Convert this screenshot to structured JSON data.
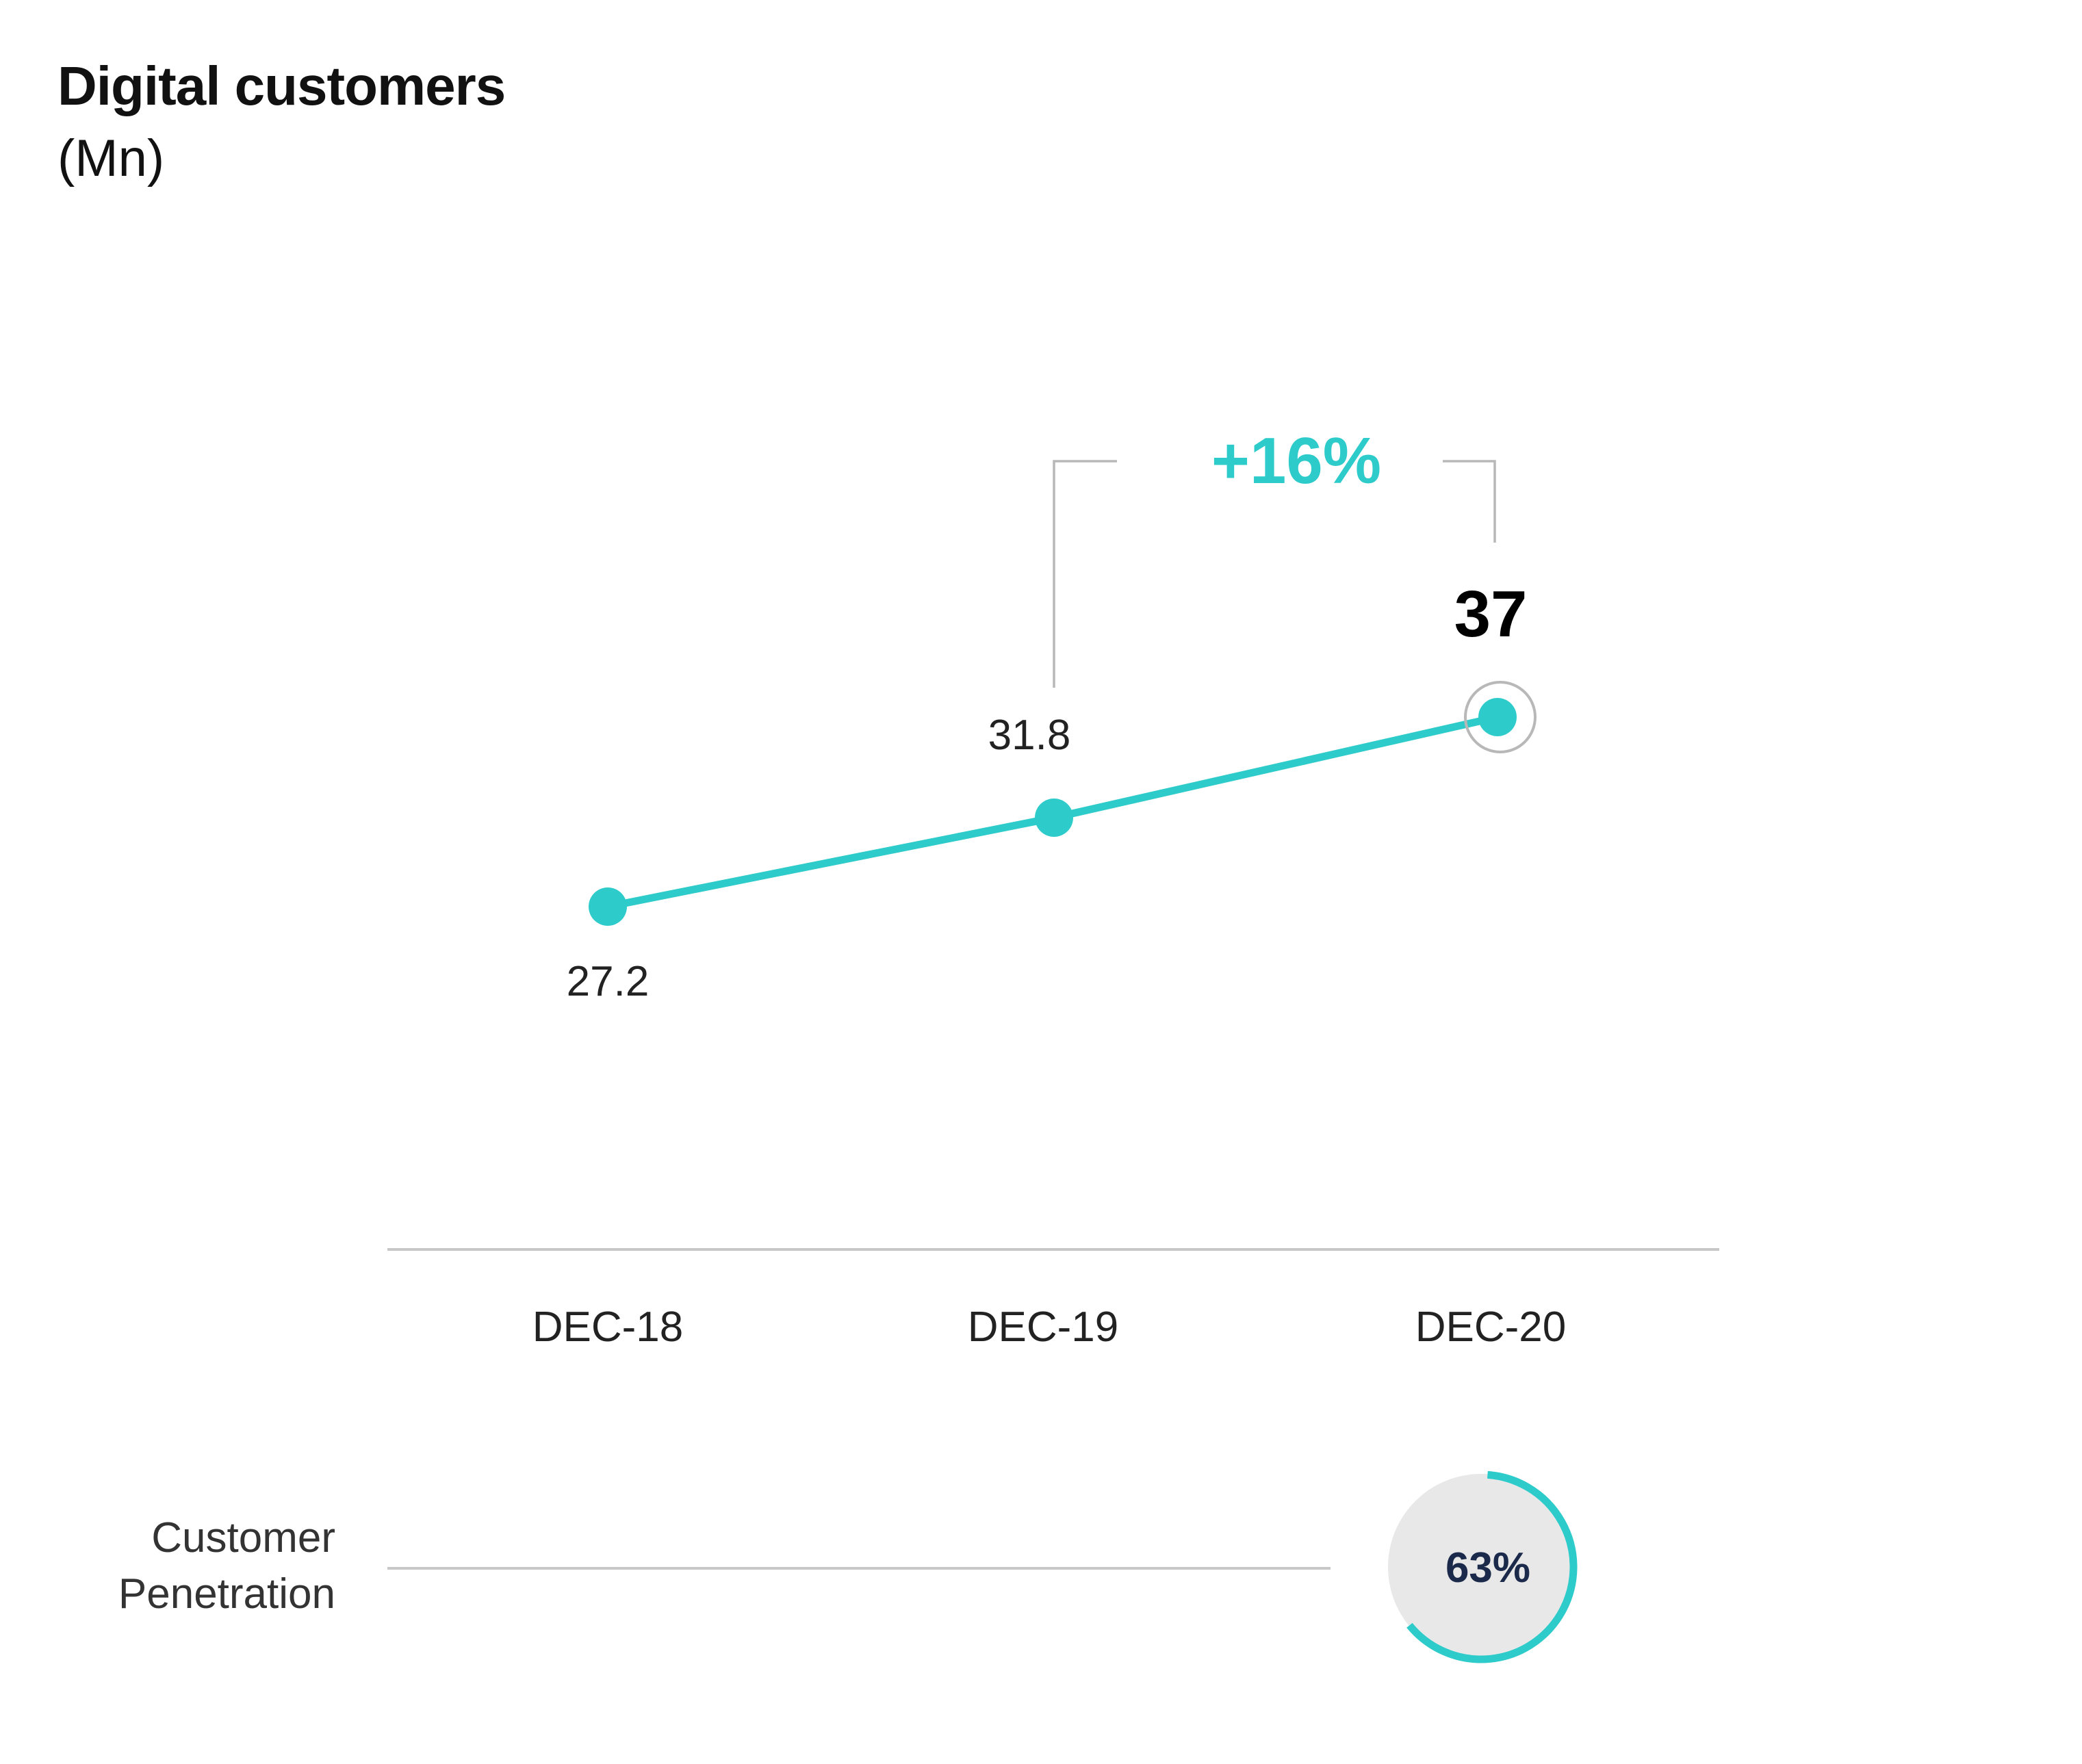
{
  "title": "Digital customers",
  "subtitle": "(Mn)",
  "colors": {
    "accent": "#2ECBCB",
    "axis": "#C8C8C8",
    "bracket": "#B8B8B8",
    "circle_fill": "#E8E8E8",
    "navy": "#1B2A4A"
  },
  "chart_data": {
    "type": "line",
    "categories": [
      "DEC-18",
      "DEC-19",
      "DEC-20"
    ],
    "values": [
      27.2,
      31.8,
      37
    ],
    "value_labels": [
      "27.2",
      "31.8",
      "37"
    ],
    "growth": {
      "label": "+16%",
      "from_category": "DEC-19",
      "to_category": "DEC-20"
    },
    "highlight_category": "DEC-20",
    "title": "Digital customers",
    "unit": "(Mn)"
  },
  "penetration": {
    "label_lines": [
      "Customer",
      "Penetration"
    ],
    "value": 63,
    "value_label": "63%"
  }
}
